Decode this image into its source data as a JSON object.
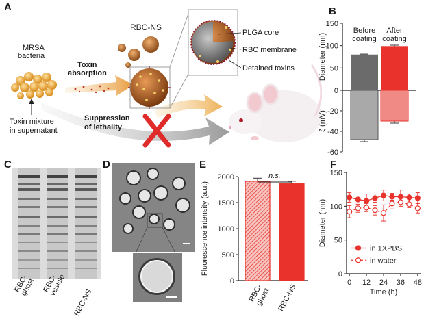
{
  "panel_labels": {
    "A": "A",
    "B": "B",
    "C": "C",
    "D": "D",
    "E": "E",
    "F": "F"
  },
  "schematic": {
    "mrsa": "MRSA",
    "bacteria": "bacteria",
    "toxin_absorption_1": "Toxin",
    "toxin_absorption_2": "absorption",
    "rbc_ns": "RBC-NS",
    "plga_core": "PLGA core",
    "rbc_membrane": "RBC membrane",
    "detained_toxins": "Detained toxins",
    "toxin_mixture_1": "Toxin mixture",
    "toxin_mixture_2": "in supernatant",
    "suppression_1": "Suppression",
    "suppression_2": "of lethality"
  },
  "gel": {
    "lanes": [
      "RBC-\nghost",
      "RBC-\nvesicle",
      "RBC-NS"
    ]
  },
  "tem": {},
  "colors": {
    "dark_gray": "#6b6b6b",
    "light_gray": "#a9a9a9",
    "red": "#e8322b",
    "light_red": "#f08a84",
    "orange_particle": "#d9822b"
  },
  "chart_data": [
    {
      "id": "B",
      "type": "bar",
      "categories": [
        "Before coating",
        "After coating"
      ],
      "category_labels": [
        [
          "Before",
          "coating"
        ],
        [
          "After",
          "coating"
        ]
      ],
      "series": [
        {
          "name": "Diameter (nm)",
          "values": [
            80,
            99
          ],
          "errors": [
            1,
            2
          ]
        },
        {
          "name": "ζ (mV)",
          "values": [
            -48,
            -30
          ],
          "errors": [
            2,
            2
          ]
        }
      ],
      "ylabel_top": "Diameter (nm)",
      "ylabel_bottom": "ζ (mV)",
      "ylim": [
        -60,
        150
      ],
      "yticks": [
        -60,
        -40,
        -20,
        0,
        50,
        100,
        150
      ],
      "ytick_labels": [
        "-60",
        "-40",
        "-20",
        "0",
        "50",
        "100",
        "150"
      ]
    },
    {
      "id": "E",
      "type": "bar",
      "categories": [
        "RBC-ghost",
        "RBC-NS"
      ],
      "category_labels": [
        [
          "RBC-",
          "ghost"
        ],
        [
          "RBC-NS"
        ]
      ],
      "values": [
        1910,
        1860
      ],
      "errors": [
        60,
        50
      ],
      "ylabel": "Fluorescence intensity (a.u.)",
      "ylim": [
        0,
        2000
      ],
      "yticks": [
        0,
        500,
        1000,
        1500,
        2000
      ],
      "ytick_labels": [
        "0",
        "500",
        "1000",
        "1500",
        "2000"
      ],
      "annotation": "n.s."
    },
    {
      "id": "F",
      "type": "line",
      "x": [
        0,
        6,
        12,
        18,
        24,
        30,
        36,
        42,
        48
      ],
      "series": [
        {
          "name": "in 1XPBS",
          "values": [
            113,
            110,
            108,
            112,
            116,
            114,
            114,
            113,
            112
          ],
          "errors": [
            7,
            5,
            10,
            6,
            8,
            5,
            10,
            5,
            8
          ]
        },
        {
          "name": "in water",
          "values": [
            92,
            97,
            98,
            94,
            90,
            104,
            106,
            103,
            97
          ],
          "errors": [
            9,
            6,
            6,
            7,
            12,
            8,
            6,
            5,
            7
          ]
        }
      ],
      "xlabel": "Time (h)",
      "ylabel": "Diameter (nm)",
      "xlim": [
        -2,
        50
      ],
      "ylim": [
        0,
        150
      ],
      "xticks": [
        0,
        12,
        24,
        36,
        48
      ],
      "xtick_labels": [
        "0",
        "12",
        "24",
        "36",
        "48"
      ],
      "yticks": [
        0,
        50,
        100,
        150
      ],
      "ytick_labels": [
        "0",
        "50",
        "100",
        "150"
      ],
      "legend_position": "bottom-left"
    }
  ]
}
